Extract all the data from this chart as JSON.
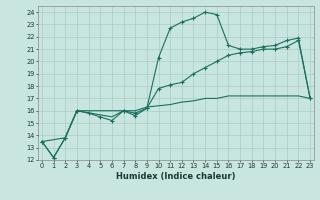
{
  "xlabel": "Humidex (Indice chaleur)",
  "bg_color": "#c8e6df",
  "grid_color": "#a8cec8",
  "line_color": "#1a6e60",
  "xlim": [
    -0.3,
    23.3
  ],
  "ylim": [
    12,
    24.5
  ],
  "yticks": [
    12,
    13,
    14,
    15,
    16,
    17,
    18,
    19,
    20,
    21,
    22,
    23,
    24
  ],
  "xticks": [
    0,
    1,
    2,
    3,
    4,
    5,
    6,
    7,
    8,
    9,
    10,
    11,
    12,
    13,
    14,
    15,
    16,
    17,
    18,
    19,
    20,
    21,
    22,
    23
  ],
  "series1_x": [
    0,
    1,
    2,
    3,
    4,
    5,
    6,
    7,
    8,
    9,
    10,
    11,
    12,
    13,
    14,
    15,
    16,
    17,
    18,
    19,
    20,
    21,
    22,
    23
  ],
  "series1_y": [
    13.5,
    12.2,
    13.8,
    16.0,
    15.8,
    15.5,
    15.2,
    16.0,
    15.6,
    16.2,
    20.3,
    22.7,
    23.2,
    23.5,
    24.0,
    23.8,
    21.3,
    21.0,
    21.0,
    21.2,
    21.3,
    21.7,
    21.9,
    17.0
  ],
  "series2_x": [
    0,
    2,
    3,
    6,
    7,
    8,
    9,
    10,
    11,
    12,
    13,
    14,
    15,
    16,
    17,
    18,
    19,
    20,
    21,
    22,
    23
  ],
  "series2_y": [
    13.5,
    13.8,
    16.0,
    15.5,
    16.0,
    16.0,
    16.3,
    16.4,
    16.5,
    16.7,
    16.8,
    17.0,
    17.0,
    17.2,
    17.2,
    17.2,
    17.2,
    17.2,
    17.2,
    17.2,
    17.0
  ],
  "series3_x": [
    0,
    1,
    2,
    3,
    7,
    8,
    9,
    10,
    11,
    12,
    13,
    14,
    15,
    16,
    17,
    18,
    19,
    20,
    21,
    22,
    23
  ],
  "series3_y": [
    13.5,
    12.2,
    13.8,
    16.0,
    16.0,
    15.8,
    16.2,
    17.8,
    18.1,
    18.3,
    19.0,
    19.5,
    20.0,
    20.5,
    20.7,
    20.8,
    21.0,
    21.0,
    21.2,
    21.7,
    17.0
  ]
}
